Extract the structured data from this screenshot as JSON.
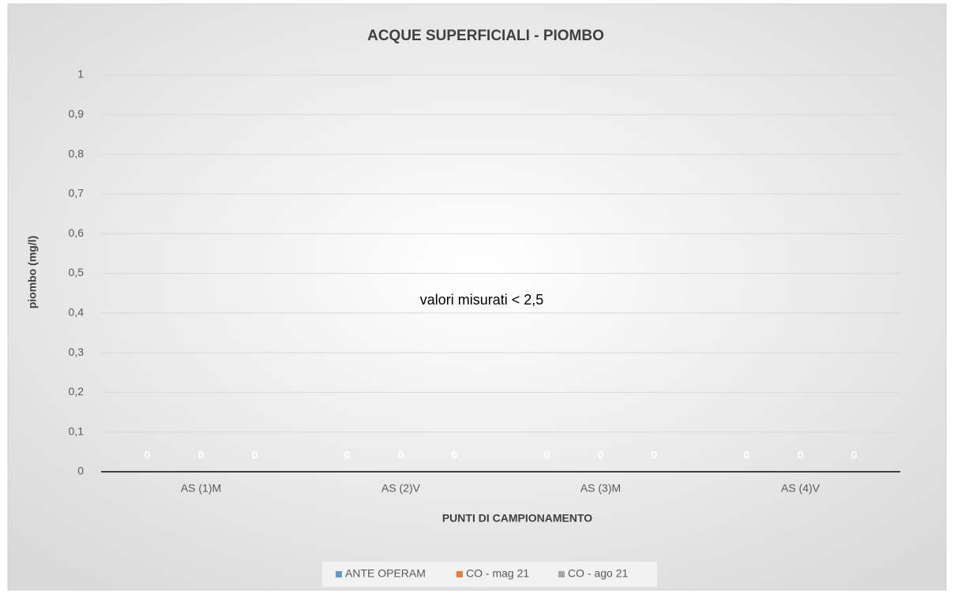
{
  "chart_data": {
    "type": "bar",
    "title": "ACQUE SUPERFICIALI - PIOMBO",
    "x_label": "PUNTI DI CAMPIONAMENTO",
    "y_label": "piombo (mg/l)",
    "annotation": "valori misurati  < 2,5",
    "categories": [
      "AS (1)M",
      "AS (2)V",
      "AS (3)M",
      "AS (4)V"
    ],
    "series": [
      {
        "name": "ANTE OPERAM",
        "color": "#5b9bd5",
        "values": [
          0,
          0,
          0,
          0
        ]
      },
      {
        "name": "CO - mag 21",
        "color": "#ed7d31",
        "values": [
          0,
          0,
          0,
          0
        ]
      },
      {
        "name": "CO - ago 21",
        "color": "#a5a5a5",
        "values": [
          0,
          0,
          0,
          0
        ]
      }
    ],
    "ylim": [
      0,
      1
    ],
    "yticks": [
      0,
      {
        "value": 0.1,
        "label": "0,1"
      },
      {
        "value": 0.2,
        "label": "0,2"
      },
      {
        "value": 0.3,
        "label": "0,3"
      },
      {
        "value": 0.4,
        "label": "0,4"
      },
      {
        "value": 0.5,
        "label": "0,5"
      },
      {
        "value": 0.6,
        "label": "0,6"
      },
      {
        "value": 0.7,
        "label": "0,7"
      },
      {
        "value": 0.8,
        "label": "0,8"
      },
      {
        "value": 0.9,
        "label": "0,9"
      },
      1
    ],
    "grid": true,
    "legend": "bottom"
  }
}
